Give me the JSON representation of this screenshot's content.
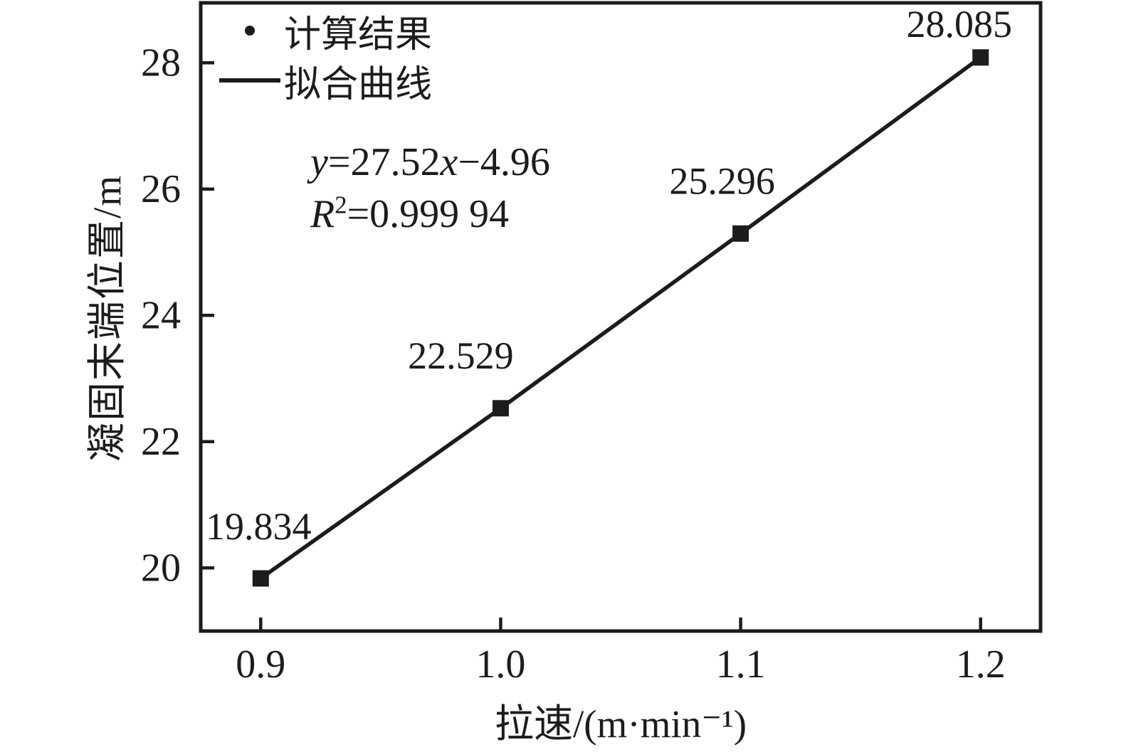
{
  "figure": {
    "background_color": "#ffffff",
    "ink_color": "#1c1c1c"
  },
  "chart_data": {
    "type": "scatter",
    "title": "",
    "xlabel": "拉速/(m·min⁻¹)",
    "ylabel": "凝固末端位置/m",
    "xlim": [
      0.875,
      1.225
    ],
    "ylim": [
      19.0,
      28.95
    ],
    "xticks": [
      0.9,
      1.0,
      1.1,
      1.2
    ],
    "xtick_labels": [
      "0.9",
      "1.0",
      "1.1",
      "1.2"
    ],
    "yticks": [
      20,
      22,
      24,
      26,
      28
    ],
    "ytick_labels": [
      "20",
      "22",
      "24",
      "26",
      "28"
    ],
    "grid": false,
    "legend": {
      "position": "upper-left",
      "entries": [
        {
          "symbol": "dot",
          "label": "计算结果"
        },
        {
          "symbol": "line",
          "label": "拟合曲线"
        }
      ]
    },
    "series": [
      {
        "name": "计算结果",
        "type": "scatter",
        "marker": "filled-square",
        "x": [
          0.9,
          1.0,
          1.1,
          1.2
        ],
        "y": [
          19.834,
          22.529,
          25.296,
          28.085
        ],
        "point_labels": [
          "19.834",
          "22.529",
          "25.296",
          "28.085"
        ]
      },
      {
        "name": "拟合曲线",
        "type": "line",
        "x": [
          0.9,
          1.0,
          1.1,
          1.2
        ],
        "y": [
          19.834,
          22.529,
          25.296,
          28.085
        ]
      }
    ],
    "annotations": [
      "y=27.52x−4.96",
      "R²=0.999 94"
    ]
  }
}
